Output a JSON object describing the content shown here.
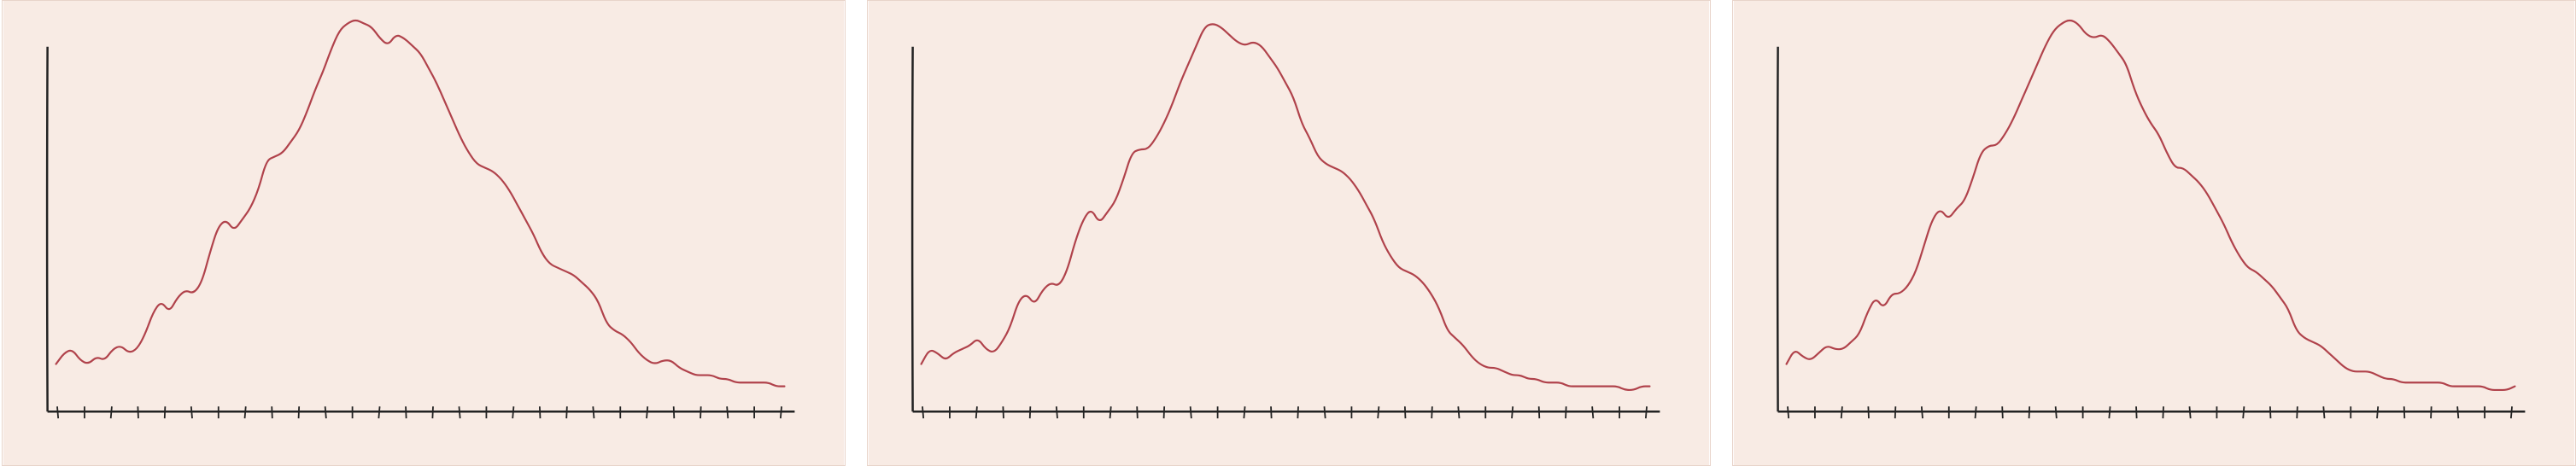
{
  "chart_data": [
    {
      "type": "line",
      "title": "",
      "xlabel": "",
      "ylabel": "",
      "x_tick_count": 28,
      "xlim": [
        0,
        27
      ],
      "ylim": [
        0,
        100
      ],
      "grid": false,
      "series": [
        {
          "x": [
            0,
            0.3,
            0.6,
            0.9,
            1.2,
            1.5,
            1.8,
            2.1,
            2.4,
            2.7,
            3.0,
            3.3,
            3.6,
            3.9,
            4.2,
            4.5,
            4.8,
            5.1,
            5.4,
            5.7,
            6.0,
            6.3,
            6.6,
            6.9,
            7.2,
            7.5,
            7.8,
            8.1,
            8.4,
            8.7,
            9.0,
            9.3,
            9.6,
            9.9,
            10.2,
            10.5,
            10.8,
            11.1,
            11.4,
            11.7,
            12.0,
            12.3,
            12.6,
            12.9,
            13.2,
            13.5,
            13.8,
            14.1,
            14.4,
            14.7,
            15.0,
            15.3,
            15.6,
            15.9,
            16.2,
            16.5,
            16.8,
            17.1,
            17.4,
            17.7,
            18.0,
            18.3,
            18.6,
            18.9,
            19.2,
            19.5,
            19.8,
            20.1,
            20.4,
            20.7,
            21.0,
            21.3,
            21.6,
            21.9,
            22.2,
            22.5,
            22.8,
            23.1,
            23.4,
            23.7,
            24.0,
            24.3,
            24.6,
            24.9,
            25.2,
            25.5,
            25.8,
            26.1,
            26.4,
            26.7,
            27.0
          ],
          "y": [
            8,
            11,
            12,
            9,
            8,
            10,
            9,
            12,
            13,
            11,
            12,
            16,
            22,
            25,
            22,
            26,
            28,
            27,
            30,
            38,
            45,
            47,
            44,
            47,
            50,
            55,
            63,
            64,
            65,
            68,
            71,
            76,
            82,
            87,
            93,
            98,
            100,
            101,
            100,
            99,
            96,
            94,
            97,
            96,
            94,
            92,
            88,
            84,
            79,
            74,
            69,
            65,
            62,
            61,
            60,
            58,
            55,
            51,
            47,
            43,
            38,
            35,
            34,
            33,
            32,
            30,
            28,
            25,
            19,
            17,
            16,
            14,
            11,
            9,
            8,
            9,
            9,
            7,
            6,
            5,
            5,
            5,
            4,
            4,
            3,
            3,
            3,
            3,
            3,
            2,
            2
          ]
        }
      ]
    },
    {
      "type": "line",
      "title": "",
      "xlabel": "",
      "ylabel": "",
      "x_tick_count": 28,
      "xlim": [
        0,
        27
      ],
      "ylim": [
        0,
        100
      ],
      "grid": false,
      "series": [
        {
          "x": [
            0,
            0.3,
            0.6,
            0.9,
            1.2,
            1.5,
            1.8,
            2.1,
            2.4,
            2.7,
            3.0,
            3.3,
            3.6,
            3.9,
            4.2,
            4.5,
            4.8,
            5.1,
            5.4,
            5.7,
            6.0,
            6.3,
            6.6,
            6.9,
            7.2,
            7.5,
            7.8,
            8.1,
            8.4,
            8.7,
            9.0,
            9.3,
            9.6,
            9.9,
            10.2,
            10.5,
            10.8,
            11.1,
            11.4,
            11.7,
            12.0,
            12.3,
            12.6,
            12.9,
            13.2,
            13.5,
            13.8,
            14.1,
            14.4,
            14.7,
            15.0,
            15.3,
            15.6,
            15.9,
            16.2,
            16.5,
            16.8,
            17.1,
            17.4,
            17.7,
            18.0,
            18.3,
            18.6,
            18.9,
            19.2,
            19.5,
            19.8,
            20.1,
            20.4,
            20.7,
            21.0,
            21.3,
            21.6,
            21.9,
            22.2,
            22.5,
            22.8,
            23.1,
            23.4,
            23.7,
            24.0,
            24.3,
            24.6,
            24.9,
            25.2,
            25.5,
            25.8,
            26.1,
            26.4,
            26.7,
            27.0
          ],
          "y": [
            8,
            12,
            11,
            9,
            11,
            12,
            13,
            15,
            12,
            11,
            14,
            18,
            25,
            27,
            24,
            28,
            30,
            29,
            33,
            41,
            47,
            50,
            46,
            49,
            52,
            58,
            65,
            66,
            66,
            69,
            73,
            78,
            84,
            89,
            94,
            99,
            100,
            99,
            97,
            95,
            94,
            95,
            94,
            91,
            88,
            84,
            80,
            73,
            69,
            64,
            62,
            61,
            60,
            58,
            55,
            51,
            47,
            41,
            37,
            34,
            33,
            32,
            30,
            27,
            23,
            17,
            15,
            13,
            10,
            8,
            7,
            7,
            6,
            5,
            5,
            4,
            4,
            3,
            3,
            3,
            2,
            2,
            2,
            2,
            2,
            2,
            2,
            1,
            1,
            2,
            2
          ]
        }
      ]
    },
    {
      "type": "line",
      "title": "",
      "xlabel": "",
      "ylabel": "",
      "x_tick_count": 28,
      "xlim": [
        0,
        27
      ],
      "ylim": [
        0,
        100
      ],
      "grid": false,
      "series": [
        {
          "x": [
            0,
            0.3,
            0.6,
            0.9,
            1.2,
            1.5,
            1.8,
            2.1,
            2.4,
            2.7,
            3.0,
            3.3,
            3.6,
            3.9,
            4.2,
            4.5,
            4.8,
            5.1,
            5.4,
            5.7,
            6.0,
            6.3,
            6.6,
            6.9,
            7.2,
            7.5,
            7.8,
            8.1,
            8.4,
            8.7,
            9.0,
            9.3,
            9.6,
            9.9,
            10.2,
            10.5,
            10.8,
            11.1,
            11.4,
            11.7,
            12.0,
            12.3,
            12.6,
            12.9,
            13.2,
            13.5,
            13.8,
            14.1,
            14.4,
            14.7,
            15.0,
            15.3,
            15.6,
            15.9,
            16.2,
            16.5,
            16.8,
            17.1,
            17.4,
            17.7,
            18.0,
            18.3,
            18.6,
            18.9,
            19.2,
            19.5,
            19.8,
            20.1,
            20.4,
            20.7,
            21.0,
            21.3,
            21.6,
            21.9,
            22.2,
            22.5,
            22.8,
            23.1,
            23.4,
            23.7,
            24.0,
            24.3,
            24.6,
            24.9,
            25.2,
            25.5,
            25.8,
            26.1,
            26.4,
            26.7,
            27.0
          ],
          "y": [
            8,
            12,
            10,
            9,
            11,
            13,
            12,
            12,
            14,
            16,
            22,
            26,
            23,
            27,
            27,
            29,
            33,
            40,
            47,
            50,
            47,
            50,
            52,
            58,
            65,
            67,
            67,
            70,
            74,
            79,
            84,
            89,
            94,
            98,
            100,
            101,
            100,
            97,
            96,
            97,
            95,
            92,
            89,
            82,
            77,
            73,
            70,
            65,
            61,
            61,
            59,
            57,
            54,
            50,
            46,
            41,
            37,
            34,
            33,
            31,
            29,
            26,
            23,
            17,
            15,
            14,
            13,
            11,
            9,
            7,
            6,
            6,
            6,
            5,
            4,
            4,
            3,
            3,
            3,
            3,
            3,
            3,
            2,
            2,
            2,
            2,
            2,
            1,
            1,
            1,
            2
          ]
        }
      ]
    }
  ],
  "colors": {
    "panel_background": "#f8ebe4",
    "axis": "#222222",
    "line": "#b0424b"
  }
}
